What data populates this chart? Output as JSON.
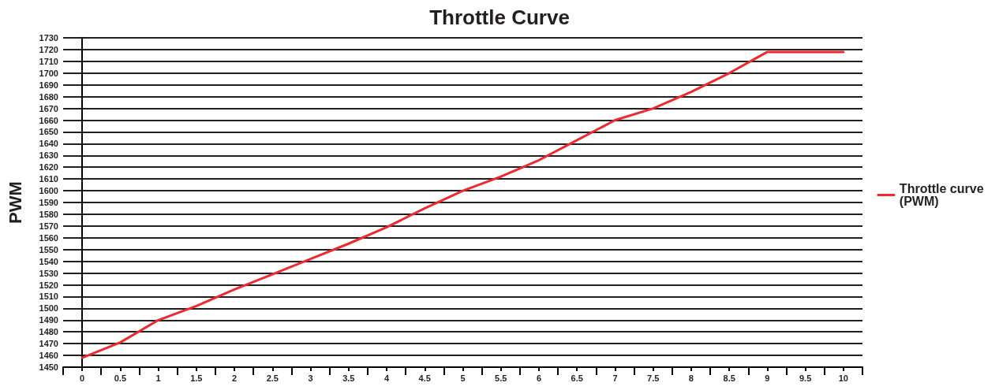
{
  "chart_data": {
    "type": "line",
    "title": "Throttle Curve",
    "ylabel": "PWM",
    "x": [
      0,
      0.5,
      1,
      1.5,
      2,
      2.5,
      3,
      3.5,
      4,
      4.5,
      5,
      5.5,
      6,
      6.5,
      7,
      7.5,
      8,
      8.5,
      9,
      10
    ],
    "series": [
      {
        "name": "Throttle curve (PWM)",
        "color": "#ee2a2e",
        "values": [
          1458,
          1471,
          1490,
          1502,
          1516,
          1529,
          1542,
          1555,
          1569,
          1585,
          1600,
          1612,
          1626,
          1643,
          1660,
          1670,
          1684,
          1700,
          1718,
          1718
        ]
      }
    ],
    "xlim": [
      -0.25,
      10.25
    ],
    "xticks": [
      0,
      0.5,
      1,
      1.5,
      2,
      2.5,
      3,
      3.5,
      4,
      4.5,
      5,
      5.5,
      6,
      6.5,
      7,
      7.5,
      8,
      8.5,
      9,
      9.5,
      10,
      {
        "value": -0.25,
        "label": null
      },
      {
        "value": 0.25,
        "label": null
      },
      {
        "value": 0.75,
        "label": null
      },
      {
        "value": 1.25,
        "label": null
      },
      {
        "value": 1.75,
        "label": null
      },
      {
        "value": 2.25,
        "label": null
      },
      {
        "value": 2.75,
        "label": null
      },
      {
        "value": 3.25,
        "label": null
      },
      {
        "value": 3.75,
        "label": null
      },
      {
        "value": 4.25,
        "label": null
      },
      {
        "value": 4.75,
        "label": null
      },
      {
        "value": 5.25,
        "label": null
      },
      {
        "value": 5.75,
        "label": null
      },
      {
        "value": 6.25,
        "label": null
      },
      {
        "value": 6.75,
        "label": null
      },
      {
        "value": 7.25,
        "label": null
      },
      {
        "value": 7.75,
        "label": null
      },
      {
        "value": 8.25,
        "label": null
      },
      {
        "value": 8.75,
        "label": null
      },
      {
        "value": 9.25,
        "label": null
      },
      {
        "value": 9.75,
        "label": null
      },
      {
        "value": 10.25,
        "label": null
      }
    ],
    "ylim": [
      1450,
      1730
    ],
    "yticks": [
      1450,
      1460,
      1470,
      1480,
      1490,
      1500,
      1510,
      1520,
      1530,
      1540,
      1550,
      1560,
      1570,
      1580,
      1590,
      1600,
      1610,
      1620,
      1630,
      1640,
      1650,
      1660,
      1670,
      1680,
      1690,
      1700,
      1710,
      1720,
      1730
    ],
    "grid": "y",
    "legend": "right",
    "marker": "none",
    "line_style": "solid"
  }
}
